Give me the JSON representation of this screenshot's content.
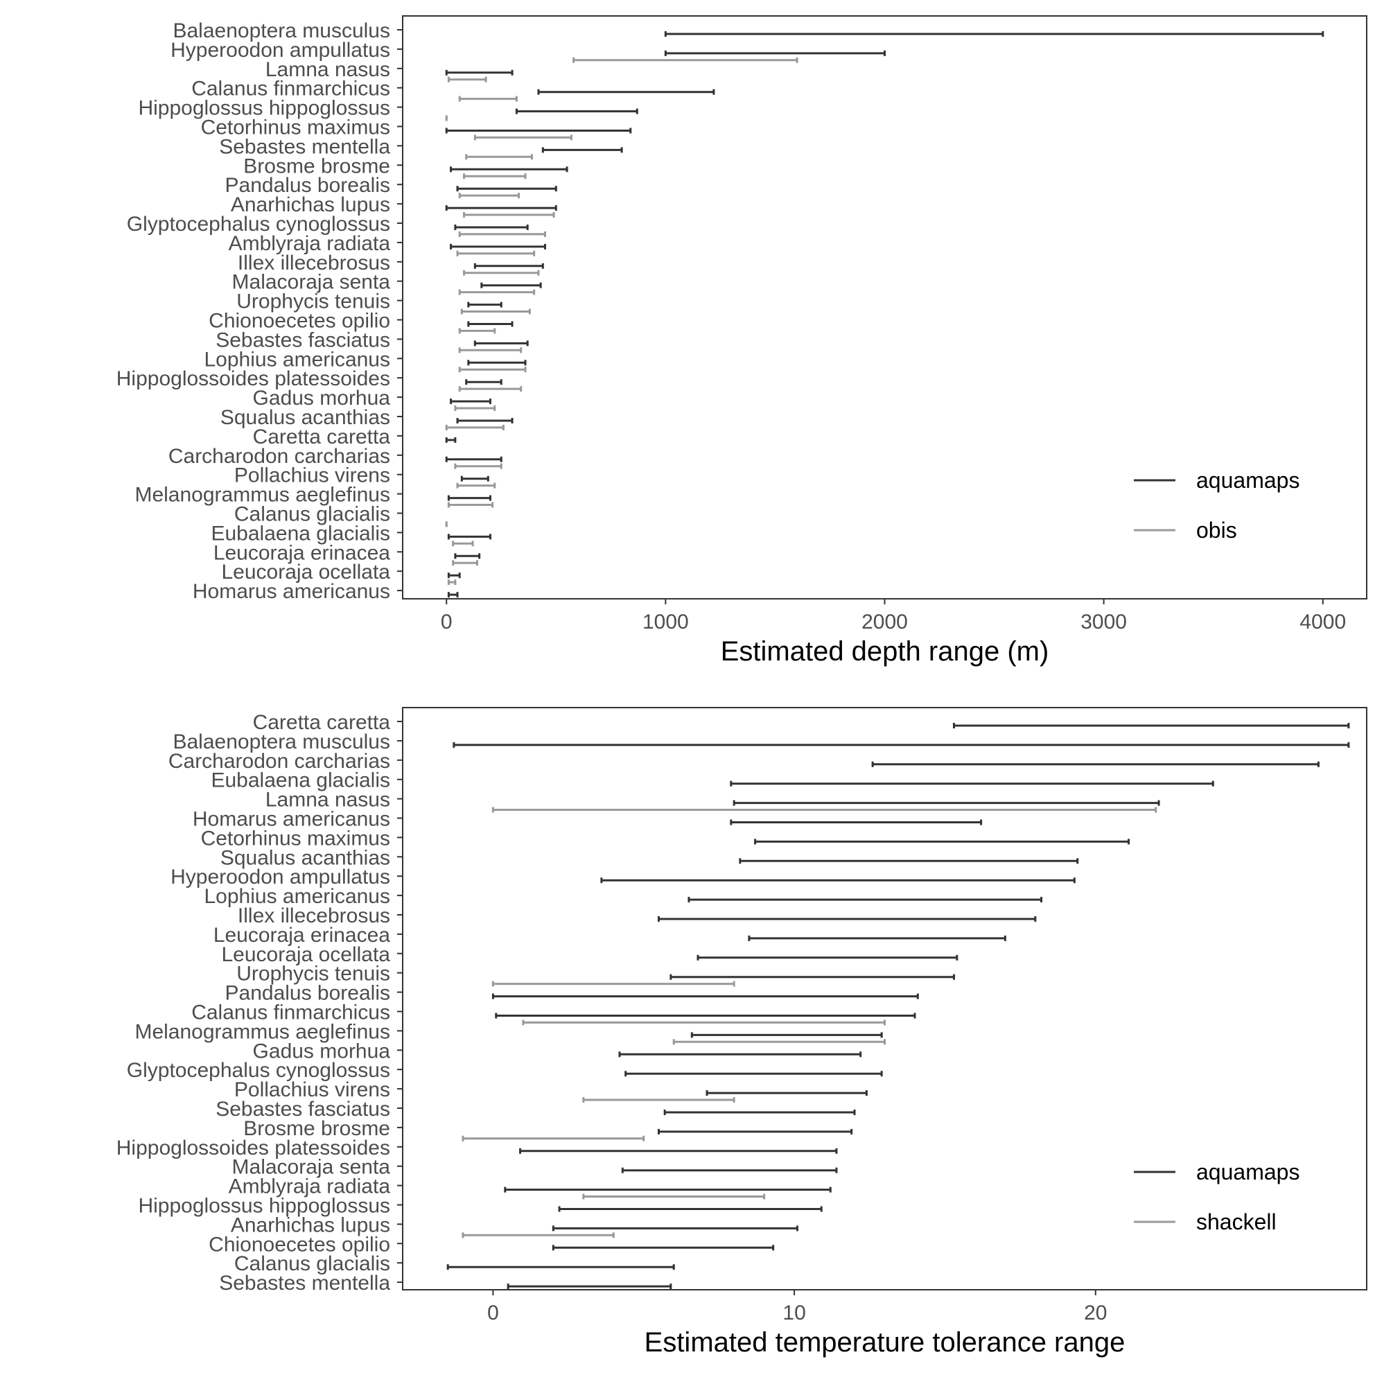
{
  "chart_data": [
    {
      "type": "range",
      "xlabel": "Estimated depth range (m)",
      "xlim": [
        -200,
        4200
      ],
      "x_ticks": [
        0,
        1000,
        2000,
        3000,
        4000
      ],
      "grid": false,
      "legend_position": "bottom-right",
      "categories": [
        "Balaenoptera musculus",
        "Hyperoodon ampullatus",
        "Lamna nasus",
        "Calanus finmarchicus",
        "Hippoglossus hippoglossus",
        "Cetorhinus maximus",
        "Sebastes mentella",
        "Brosme brosme",
        "Pandalus borealis",
        "Anarhichas lupus",
        "Glyptocephalus cynoglossus",
        "Amblyraja radiata",
        "Illex illecebrosus",
        "Malacoraja senta",
        "Urophycis tenuis",
        "Chionoecetes opilio",
        "Sebastes fasciatus",
        "Lophius americanus",
        "Hippoglossoides platessoides",
        "Gadus morhua",
        "Squalus acanthias",
        "Caretta caretta",
        "Carcharodon carcharias",
        "Pollachius virens",
        "Melanogrammus aeglefinus",
        "Calanus glacialis",
        "Eubalaena glacialis",
        "Leucoraja erinacea",
        "Leucoraja ocellata",
        "Homarus americanus"
      ],
      "series": [
        {
          "name": "aquamaps",
          "color": "#333333",
          "ranges": [
            [
              1000,
              4000
            ],
            [
              1000,
              2000
            ],
            [
              0,
              300
            ],
            [
              420,
              1220
            ],
            [
              320,
              870
            ],
            [
              0,
              840
            ],
            [
              440,
              800
            ],
            [
              20,
              550
            ],
            [
              50,
              500
            ],
            [
              0,
              500
            ],
            [
              40,
              370
            ],
            [
              20,
              450
            ],
            [
              130,
              440
            ],
            [
              160,
              430
            ],
            [
              100,
              250
            ],
            [
              100,
              300
            ],
            [
              130,
              370
            ],
            [
              100,
              360
            ],
            [
              90,
              250
            ],
            [
              20,
              200
            ],
            [
              50,
              300
            ],
            [
              0,
              40
            ],
            [
              0,
              250
            ],
            [
              70,
              190
            ],
            [
              10,
              200
            ],
            null,
            [
              10,
              200
            ],
            [
              40,
              150
            ],
            [
              10,
              60
            ],
            [
              10,
              50
            ]
          ]
        },
        {
          "name": "obis",
          "color": "#999999",
          "ranges": [
            null,
            null,
            [
              580,
              1600
            ],
            [
              10,
              180
            ],
            [
              60,
              320
            ],
            [
              0,
              0
            ],
            [
              130,
              570
            ],
            [
              90,
              390
            ],
            [
              80,
              360
            ],
            [
              60,
              330
            ],
            [
              80,
              490
            ],
            [
              60,
              450
            ],
            [
              50,
              400
            ],
            [
              80,
              420
            ],
            [
              60,
              400
            ],
            [
              70,
              380
            ],
            [
              60,
              220
            ],
            [
              60,
              340
            ],
            [
              60,
              360
            ],
            [
              60,
              340
            ],
            [
              40,
              220
            ],
            [
              0,
              260
            ],
            null,
            [
              40,
              250
            ],
            [
              50,
              220
            ],
            [
              10,
              210
            ],
            [
              0,
              0
            ],
            [
              30,
              120
            ],
            [
              30,
              140
            ],
            [
              10,
              40
            ]
          ]
        }
      ]
    },
    {
      "type": "range",
      "xlabel": "Estimated temperature tolerance range",
      "xlim": [
        -3,
        29
      ],
      "x_ticks": [
        0,
        10,
        20
      ],
      "grid": false,
      "legend_position": "bottom-right",
      "categories": [
        "Caretta caretta",
        "Balaenoptera musculus",
        "Carcharodon carcharias",
        "Eubalaena glacialis",
        "Lamna nasus",
        "Homarus americanus",
        "Cetorhinus maximus",
        "Squalus acanthias",
        "Hyperoodon ampullatus",
        "Lophius americanus",
        "Illex illecebrosus",
        "Leucoraja erinacea",
        "Leucoraja ocellata",
        "Urophycis tenuis",
        "Pandalus borealis",
        "Calanus finmarchicus",
        "Melanogrammus aeglefinus",
        "Gadus morhua",
        "Glyptocephalus cynoglossus",
        "Pollachius virens",
        "Sebastes fasciatus",
        "Brosme brosme",
        "Hippoglossoides platessoides",
        "Malacoraja senta",
        "Amblyraja radiata",
        "Hippoglossus hippoglossus",
        "Anarhichas lupus",
        "Chionoecetes opilio",
        "Calanus glacialis",
        "Sebastes mentella"
      ],
      "series": [
        {
          "name": "aquamaps",
          "color": "#333333",
          "ranges": [
            [
              15.3,
              28.4
            ],
            [
              -1.3,
              28.4
            ],
            [
              12.6,
              27.4
            ],
            [
              7.9,
              23.9
            ],
            [
              8.0,
              22.1
            ],
            [
              7.9,
              16.2
            ],
            [
              8.7,
              21.1
            ],
            [
              8.2,
              19.4
            ],
            [
              3.6,
              19.3
            ],
            [
              6.5,
              18.2
            ],
            [
              5.5,
              18.0
            ],
            [
              8.5,
              17.0
            ],
            [
              6.8,
              15.4
            ],
            [
              5.9,
              15.3
            ],
            [
              0,
              14.1
            ],
            [
              0.1,
              14.0
            ],
            [
              6.6,
              12.9
            ],
            [
              4.2,
              12.2
            ],
            [
              4.4,
              12.9
            ],
            [
              7.1,
              12.4
            ],
            [
              5.7,
              12.0
            ],
            [
              5.5,
              11.9
            ],
            [
              0.9,
              11.4
            ],
            [
              4.3,
              11.4
            ],
            [
              0.4,
              11.2
            ],
            [
              2.2,
              10.9
            ],
            [
              2.0,
              10.1
            ],
            [
              2.0,
              9.3
            ],
            [
              -1.5,
              6.0
            ],
            [
              0.5,
              5.9
            ]
          ]
        },
        {
          "name": "shackell",
          "color": "#999999",
          "ranges": [
            null,
            null,
            null,
            null,
            null,
            [
              0,
              22.0
            ],
            null,
            null,
            null,
            null,
            null,
            null,
            null,
            null,
            [
              0,
              8.0
            ],
            null,
            [
              1.0,
              13.0
            ],
            [
              6.0,
              13.0
            ],
            null,
            null,
            [
              3.0,
              8.0
            ],
            null,
            [
              -1.0,
              5.0
            ],
            null,
            null,
            [
              3.0,
              9.0
            ],
            null,
            [
              -1.0,
              4.0
            ],
            null,
            null
          ]
        }
      ]
    }
  ]
}
